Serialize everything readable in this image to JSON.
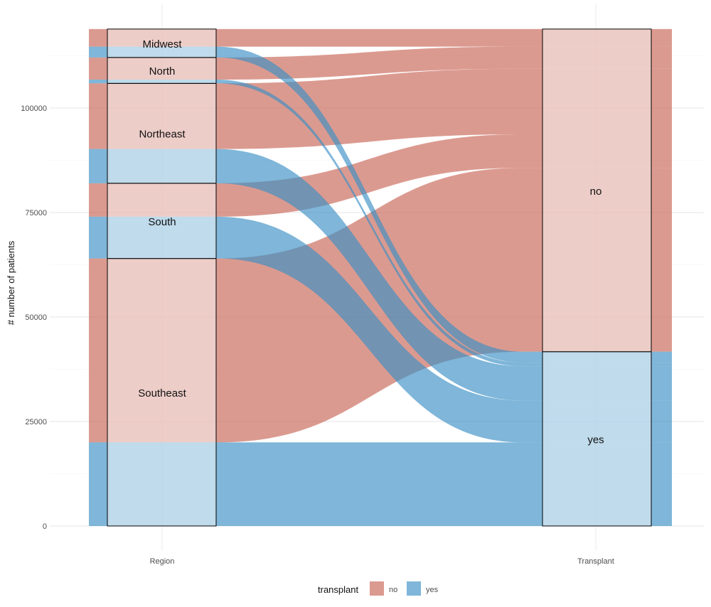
{
  "chart_data": {
    "type": "alluvial",
    "title": "",
    "xlabel": "",
    "ylabel": "# number of patients",
    "axes": [
      "Region",
      "Transplant"
    ],
    "ylim": [
      0,
      120000
    ],
    "yticks": [
      0,
      25000,
      50000,
      75000,
      100000
    ],
    "ytick_labels": [
      "0",
      "25000",
      "50000",
      "75000",
      "100000"
    ],
    "grid": true,
    "regions": [
      "Southeast",
      "South",
      "Northeast",
      "North",
      "Midwest"
    ],
    "transplant_levels": [
      "yes",
      "no"
    ],
    "flows": [
      {
        "region": "Southeast",
        "yes": 20000,
        "no": 44000
      },
      {
        "region": "South",
        "yes": 10000,
        "no": 8000
      },
      {
        "region": "Northeast",
        "yes": 8200,
        "no": 15700
      },
      {
        "region": "North",
        "yes": 900,
        "no": 5300
      },
      {
        "region": "Midwest",
        "yes": 2600,
        "no": 4200
      }
    ],
    "legend": {
      "title": "transplant",
      "position": "bottom",
      "entries": [
        {
          "label": "no",
          "color": "#db9a90"
        },
        {
          "label": "yes",
          "color": "#7fb6d9"
        }
      ]
    }
  }
}
